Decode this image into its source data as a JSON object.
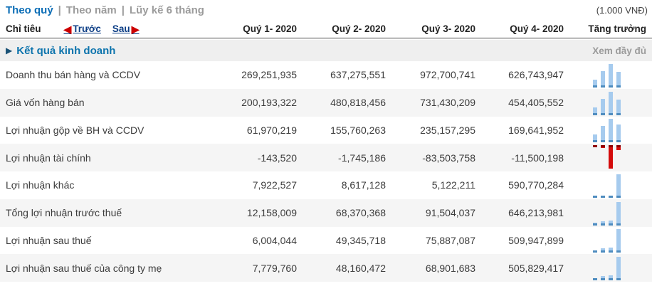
{
  "unit_label": "(1.000 VNĐ)",
  "tabs": [
    {
      "label": "Theo quý",
      "active": true
    },
    {
      "label": "Theo năm",
      "active": false
    },
    {
      "label": "Lũy kế 6 tháng",
      "active": false
    }
  ],
  "header": {
    "label_col": "Chỉ tiêu",
    "prev_label": "Trước",
    "next_label": "Sau",
    "columns": [
      "Quý 1- 2020",
      "Quý 2- 2020",
      "Quý 3- 2020",
      "Quý 4- 2020"
    ],
    "growth_label": "Tăng trưởng"
  },
  "section": {
    "title": "Kết quả kinh doanh",
    "view_full_label": "Xem đầy đủ"
  },
  "rows": [
    {
      "label": "Doanh thu bán hàng và CCDV",
      "values": [
        "269,251,935",
        "637,275,551",
        "972,700,741",
        "626,743,947"
      ]
    },
    {
      "label": "Giá vốn hàng bán",
      "values": [
        "200,193,322",
        "480,818,456",
        "731,430,209",
        "454,405,552"
      ]
    },
    {
      "label": "Lợi nhuận gộp về BH và CCDV",
      "values": [
        "61,970,219",
        "155,760,263",
        "235,157,295",
        "169,641,952"
      ]
    },
    {
      "label": "Lợi nhuận tài chính",
      "values": [
        "-143,520",
        "-1,745,186",
        "-83,503,758",
        "-11,500,198"
      ]
    },
    {
      "label": "Lợi nhuận khác",
      "values": [
        "7,922,527",
        "8,617,128",
        "5,122,211",
        "590,770,284"
      ]
    },
    {
      "label": "Tổng lợi nhuận trước thuế",
      "values": [
        "12,158,009",
        "68,370,368",
        "91,504,037",
        "646,213,981"
      ]
    },
    {
      "label": "Lợi nhuận sau thuế",
      "values": [
        "6,004,044",
        "49,345,718",
        "75,887,087",
        "509,947,899"
      ]
    },
    {
      "label": "Lợi nhuận sau thuế của công ty mẹ",
      "values": [
        "7,779,760",
        "48,160,472",
        "68,901,683",
        "505,829,417"
      ]
    }
  ],
  "icons": {
    "prev_arrow": "left-triangle",
    "next_arrow": "right-triangle",
    "section_arrow": "right-triangle"
  },
  "colors": {
    "active_tab": "#0b6db6",
    "inactive_tab": "#9b9b9b",
    "nav_link": "#0b3d85",
    "arrow_red": "#cc0000",
    "section_bg": "#efefef",
    "section_title": "#0d74ad",
    "row_alt_bg": "#f5f5f5",
    "bar_positive": "#a6cbee",
    "bar_positive_cap": "#4e8cbf",
    "bar_negative": "#d40b0b",
    "bar_negative_cap": "#8f0000"
  }
}
